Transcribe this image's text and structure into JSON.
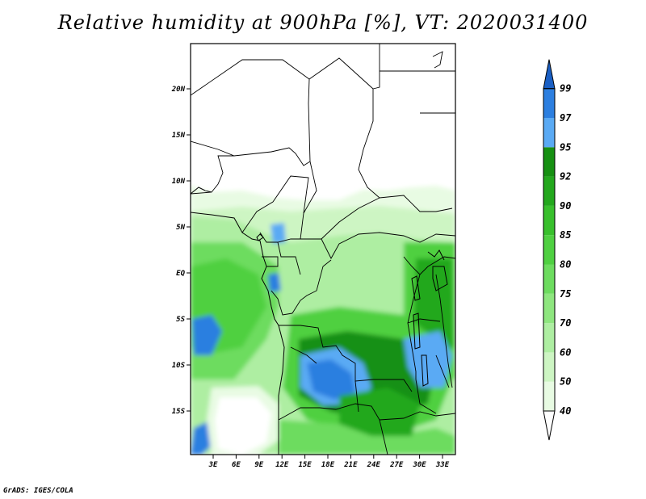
{
  "title": "Relative humidity at 900hPa [%], VT: 2020031400",
  "credit": "GrADS: IGES/COLA",
  "map": {
    "lon_ticks": [
      "3E",
      "6E",
      "9E",
      "12E",
      "15E",
      "18E",
      "21E",
      "24E",
      "27E",
      "30E",
      "33E"
    ],
    "lat_ticks": [
      "20N",
      "15N",
      "10N",
      "5N",
      "EQ",
      "5S",
      "10S",
      "15S"
    ]
  },
  "colorbar": {
    "levels": [
      "40",
      "50",
      "60",
      "70",
      "75",
      "80",
      "85",
      "90",
      "92",
      "95",
      "97",
      "99"
    ],
    "colors": [
      "#ffffff",
      "#e8fbe3",
      "#cdf5c3",
      "#aeeea2",
      "#8ee67f",
      "#6ddc5f",
      "#4fd041",
      "#38c02c",
      "#23a81d",
      "#169012",
      "#5aaaf4",
      "#2c7fe0",
      "#1a5fc4"
    ]
  }
}
